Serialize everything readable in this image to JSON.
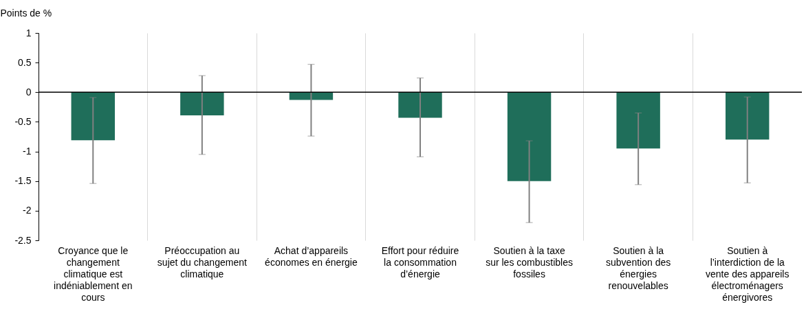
{
  "chart_data": {
    "type": "bar",
    "ylabel": "Points de %",
    "categories": [
      "Croyance que le changement climatique est indéniablement en cours",
      "Préoccupation au sujet du changement climatique",
      "Achat d’appareils économes en énergie",
      "Effort pour réduire la consommation d’énergie",
      "Soutien à la taxe sur les combustibles fossiles",
      "Soutien à la subvention des énergies renouvelables",
      "Soutien à l’interdiction de la vente des appareils électroménagers énergivores"
    ],
    "values": [
      -0.81,
      -0.39,
      -0.13,
      -0.43,
      -1.5,
      -0.95,
      -0.8
    ],
    "errors": [
      [
        -1.54,
        -0.09
      ],
      [
        -1.05,
        0.28
      ],
      [
        -0.74,
        0.47
      ],
      [
        -1.09,
        0.24
      ],
      [
        -2.2,
        -0.82
      ],
      [
        -1.56,
        -0.35
      ],
      [
        -1.53,
        -0.08
      ]
    ],
    "color": "#1f6e5a",
    "ylim": [
      -2.5,
      1
    ],
    "yticks": [
      -2.5,
      -2,
      -1.5,
      -1,
      -0.5,
      0,
      0.5,
      1
    ],
    "grid": "x",
    "ref_lines": [
      {
        "axis": "y",
        "value": 0,
        "color": "#000000"
      }
    ]
  }
}
